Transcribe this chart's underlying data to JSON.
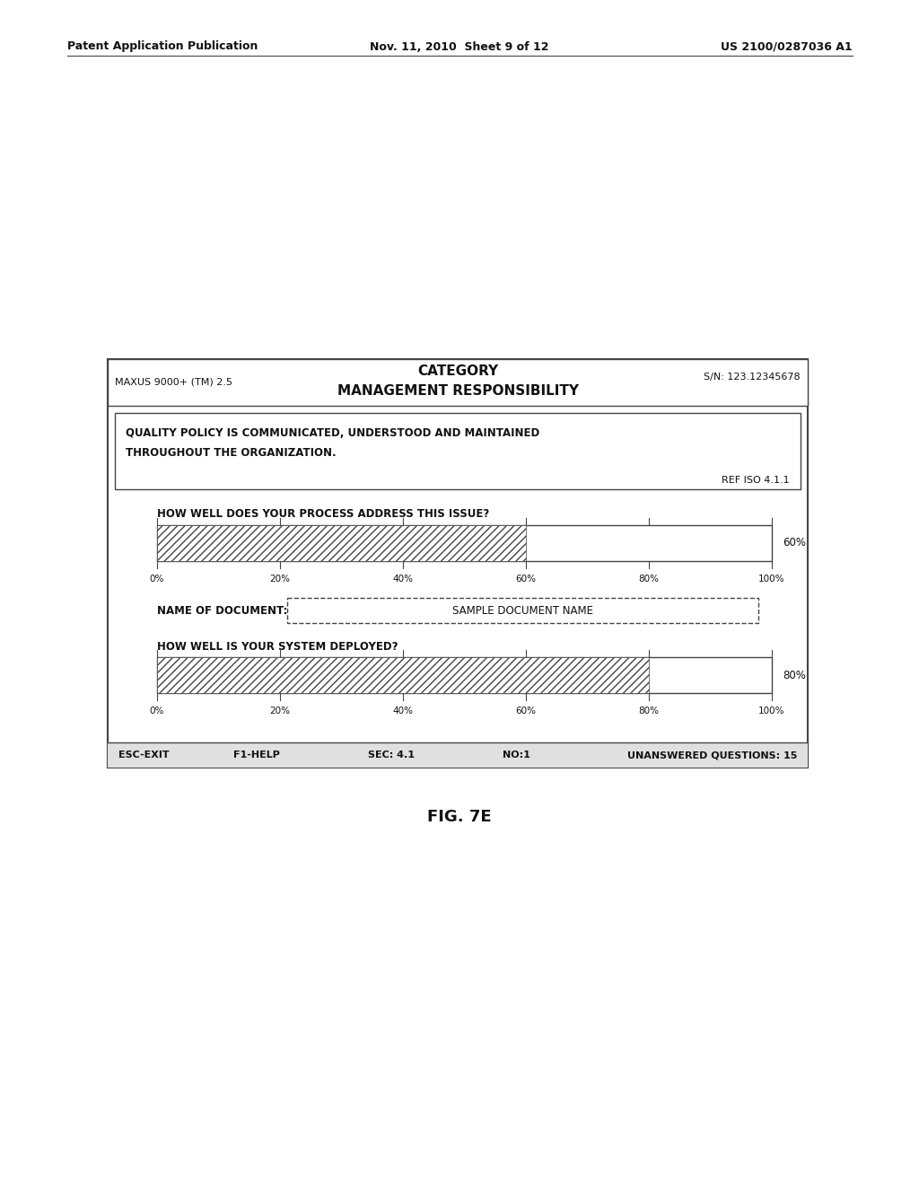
{
  "page_header_left": "Patent Application Publication",
  "page_header_mid": "Nov. 11, 2010  Sheet 9 of 12",
  "page_header_right": "US 2100/0287036 A1",
  "figure_label": "FIG. 7E",
  "box_header_left": "MAXUS 9000+ (TM) 2.5",
  "box_header_center_line1": "CATEGORY",
  "box_header_center_line2": "MANAGEMENT RESPONSIBILITY",
  "box_header_right": "S/N: 123.12345678",
  "question_box_text_line1": "QUALITY POLICY IS COMMUNICATED, UNDERSTOOD AND MAINTAINED",
  "question_box_text_line2": "THROUGHOUT THE ORGANIZATION.",
  "ref_text": "REF ISO 4.1.1",
  "bar1_label": "HOW WELL DOES YOUR PROCESS ADDRESS THIS ISSUE?",
  "bar1_value": 60,
  "bar1_value_label": "60%",
  "bar2_label": "HOW WELL IS YOUR SYSTEM DEPLOYED?",
  "bar2_value": 80,
  "bar2_value_label": "80%",
  "doc_label": "NAME OF DOCUMENT:",
  "doc_value": "SAMPLE DOCUMENT NAME",
  "axis_ticks": [
    "0%",
    "20%",
    "40%",
    "60%",
    "80%",
    "100%"
  ],
  "footer_left": "ESC-EXIT",
  "footer_mid1": "F1-HELP",
  "footer_mid2": "SEC: 4.1",
  "footer_mid3": "NO:1",
  "footer_right": "UNANSWERED QUESTIONS: 15",
  "bg_color": "#ffffff",
  "border_color": "#444444",
  "text_color": "#111111"
}
